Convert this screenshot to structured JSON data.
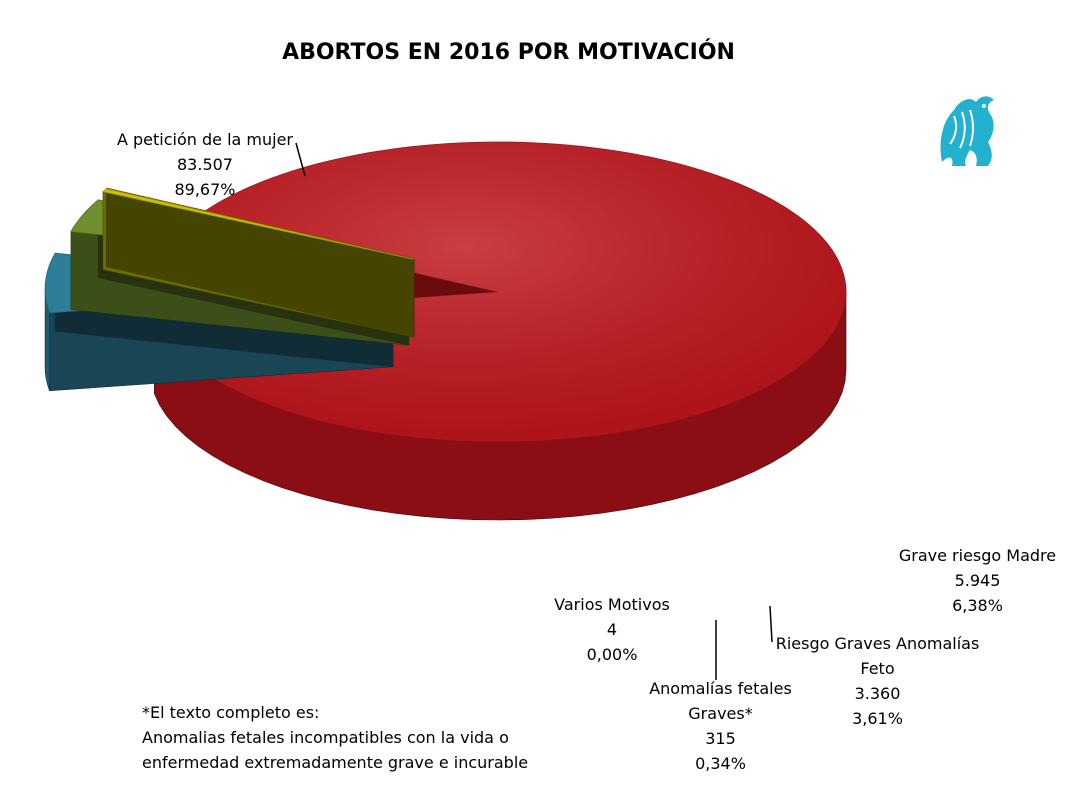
{
  "chart_data": {
    "type": "pie",
    "title": "ABORTOS EN 2016 POR MOTIVACIÓN",
    "slices": [
      {
        "name": "A petición de la mujer",
        "name_lines": [
          "A petición de la mujer"
        ],
        "value": 83507,
        "value_label": "83.507",
        "percent": 89.67,
        "percent_label": "89,67%",
        "color": "#c0141a"
      },
      {
        "name": "Grave riesgo Madre",
        "name_lines": [
          "Grave riesgo Madre"
        ],
        "value": 5945,
        "value_label": "5.945",
        "percent": 6.38,
        "percent_label": "6,38%",
        "color": "#2e7e9a"
      },
      {
        "name": "Riesgo Graves Anomalías Feto",
        "name_lines": [
          "Riesgo Graves Anomalías",
          "Feto"
        ],
        "value": 3360,
        "value_label": "3.360",
        "percent": 3.61,
        "percent_label": "3,61%",
        "color": "#6f8f2e"
      },
      {
        "name": "Anomalías fetales Graves*",
        "name_lines": [
          "Anomalías fetales",
          "Graves*"
        ],
        "value": 315,
        "value_label": "315",
        "percent": 0.34,
        "percent_label": "0,34%",
        "color": "#c8c400"
      },
      {
        "name": "Varios Motivos",
        "name_lines": [
          "Varios Motivos"
        ],
        "value": 4,
        "value_label": "4",
        "percent": 0.0,
        "percent_label": "0,00%",
        "color": "#b55a10"
      }
    ],
    "footnote": [
      "*El texto completo es:",
      "Anomalias fetales incompatibles con la vida o",
      "enfermedad extremadamente grave e incurable"
    ]
  },
  "logo_icon": "griffin-logo-icon"
}
